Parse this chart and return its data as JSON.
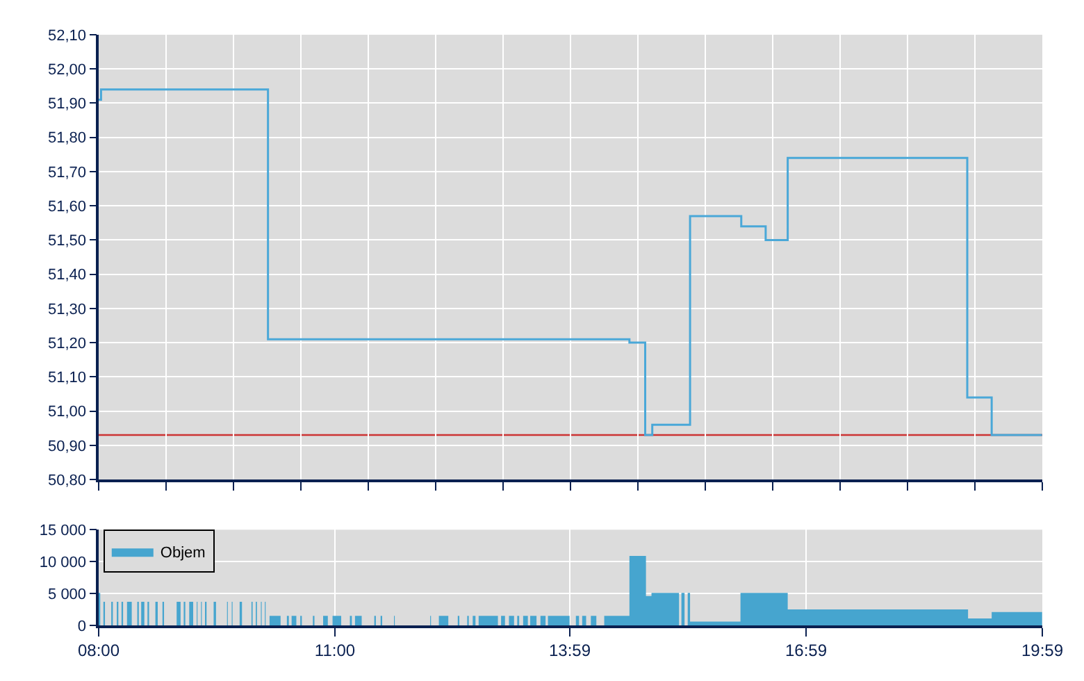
{
  "chart_data": [
    {
      "type": "step",
      "x": [
        8.0,
        8.03,
        10.15,
        14.74,
        14.94,
        15.03,
        15.51,
        16.16,
        16.47,
        16.75,
        19.03,
        19.34,
        19.98
      ],
      "series": [
        {
          "color": "#4aa8d8",
          "values": [
            51.91,
            51.94,
            51.21,
            51.2,
            50.93,
            50.96,
            51.57,
            51.54,
            51.5,
            51.74,
            51.04,
            50.93,
            50.93
          ]
        }
      ],
      "xlim": [
        8.0,
        19.983
      ],
      "xticks": [
        {
          "value": 8.0,
          "label": null
        },
        {
          "value": 8.856,
          "label": null
        },
        {
          "value": 9.712,
          "label": null
        },
        {
          "value": 10.568,
          "label": null
        },
        {
          "value": 11.424,
          "label": null
        },
        {
          "value": 12.28,
          "label": null
        },
        {
          "value": 13.136,
          "label": null
        },
        {
          "value": 13.992,
          "label": null
        },
        {
          "value": 14.847,
          "label": null
        },
        {
          "value": 15.703,
          "label": null
        },
        {
          "value": 16.559,
          "label": null
        },
        {
          "value": 17.415,
          "label": null
        },
        {
          "value": 18.271,
          "label": null
        },
        {
          "value": 19.127,
          "label": null
        },
        {
          "value": 19.983,
          "label": null
        }
      ],
      "ylim": [
        50.8,
        52.1
      ],
      "yticks": [
        {
          "value": 50.8,
          "label": "50,80"
        },
        {
          "value": 50.9,
          "label": "50,90"
        },
        {
          "value": 51.0,
          "label": "51,00"
        },
        {
          "value": 51.1,
          "label": "51,10"
        },
        {
          "value": 51.2,
          "label": "51,20"
        },
        {
          "value": 51.3,
          "label": "51,30"
        },
        {
          "value": 51.4,
          "label": "51,40"
        },
        {
          "value": 51.5,
          "label": "51,50"
        },
        {
          "value": 51.6,
          "label": "51,60"
        },
        {
          "value": 51.7,
          "label": "51,70"
        },
        {
          "value": 51.8,
          "label": "51,80"
        },
        {
          "value": 51.9,
          "label": "51,90"
        },
        {
          "value": 52.0,
          "label": "52,00"
        },
        {
          "value": 52.1,
          "label": "52,10"
        }
      ],
      "ref_lines": [
        {
          "axis": "y",
          "value": 50.93,
          "color": "#cc3333"
        }
      ],
      "grid": true,
      "tick_labels": "y"
    },
    {
      "type": "area",
      "x": [
        8.0,
        8.02,
        8.06,
        8.08,
        8.16,
        8.18,
        8.23,
        8.25,
        8.29,
        8.31,
        8.36,
        8.42,
        8.49,
        8.51,
        8.54,
        8.58,
        8.62,
        8.64,
        8.72,
        8.75,
        8.81,
        8.83,
        8.99,
        9.04,
        9.08,
        9.1,
        9.15,
        9.2,
        9.245,
        9.255,
        9.3,
        9.31,
        9.35,
        9.37,
        9.46,
        9.49,
        9.63,
        9.64,
        9.69,
        9.7,
        9.79,
        9.82,
        9.94,
        9.955,
        9.995,
        10.01,
        10.06,
        10.07,
        10.11,
        10.12,
        10.17,
        10.31,
        10.39,
        10.415,
        10.45,
        10.51,
        10.56,
        10.58,
        10.72,
        10.74,
        10.85,
        10.91,
        10.97,
        11.08,
        11.19,
        11.215,
        11.255,
        11.34,
        11.5,
        11.52,
        11.58,
        11.6,
        11.75,
        11.76,
        12.21,
        12.22,
        12.32,
        12.44,
        12.56,
        12.58,
        12.68,
        12.7,
        12.75,
        12.785,
        12.825,
        13.07,
        13.11,
        13.16,
        13.21,
        13.275,
        13.315,
        13.34,
        13.39,
        13.45,
        13.48,
        13.56,
        13.61,
        13.675,
        13.705,
        13.98,
        14.06,
        14.1,
        14.14,
        14.19,
        14.25,
        14.32,
        14.42,
        14.74,
        14.95,
        15.02,
        15.37,
        15.4,
        15.44,
        15.48,
        15.51,
        16.15,
        16.75,
        19.04,
        19.34,
        19.98
      ],
      "series": [
        {
          "name": "Objem",
          "color": "#46a5cf",
          "values": [
            5100,
            0,
            3700,
            0,
            3700,
            0,
            3700,
            0,
            3700,
            0,
            3700,
            0,
            3700,
            0,
            3700,
            0,
            3700,
            0,
            3700,
            0,
            3700,
            0,
            3700,
            0,
            3700,
            0,
            3700,
            0,
            3700,
            0,
            3700,
            0,
            3700,
            0,
            3700,
            0,
            3700,
            0,
            3700,
            0,
            3700,
            0,
            3700,
            0,
            3700,
            0,
            3700,
            0,
            3700,
            0,
            1500,
            0,
            1500,
            0,
            1500,
            0,
            1500,
            0,
            1500,
            0,
            1500,
            0,
            1500,
            0,
            1500,
            0,
            1500,
            0,
            1500,
            0,
            1500,
            0,
            1500,
            0,
            1500,
            0,
            1500,
            0,
            1500,
            0,
            1500,
            0,
            1500,
            0,
            1500,
            0,
            1500,
            0,
            1500,
            0,
            1500,
            0,
            1500,
            0,
            1500,
            0,
            1500,
            0,
            1500,
            0,
            1500,
            0,
            1500,
            0,
            1500,
            0,
            1500,
            10900,
            4600,
            5100,
            0,
            5100,
            0,
            5100,
            600,
            5100,
            2500,
            1100,
            2100,
            2100
          ]
        }
      ],
      "xlim": [
        8.0,
        19.983
      ],
      "xticks": [
        {
          "value": 8.0,
          "label": "08:00"
        },
        {
          "value": 11.0,
          "label": "11:00"
        },
        {
          "value": 13.983,
          "label": "13:59"
        },
        {
          "value": 16.983,
          "label": "16:59"
        },
        {
          "value": 19.983,
          "label": "19:59"
        }
      ],
      "ylim": [
        0,
        15000
      ],
      "yticks": [
        {
          "value": 0,
          "label": "0"
        },
        {
          "value": 5000,
          "label": "5 000"
        },
        {
          "value": 10000,
          "label": "10 000"
        },
        {
          "value": 15000,
          "label": "15 000"
        }
      ],
      "grid": true,
      "legend": "top left"
    }
  ]
}
